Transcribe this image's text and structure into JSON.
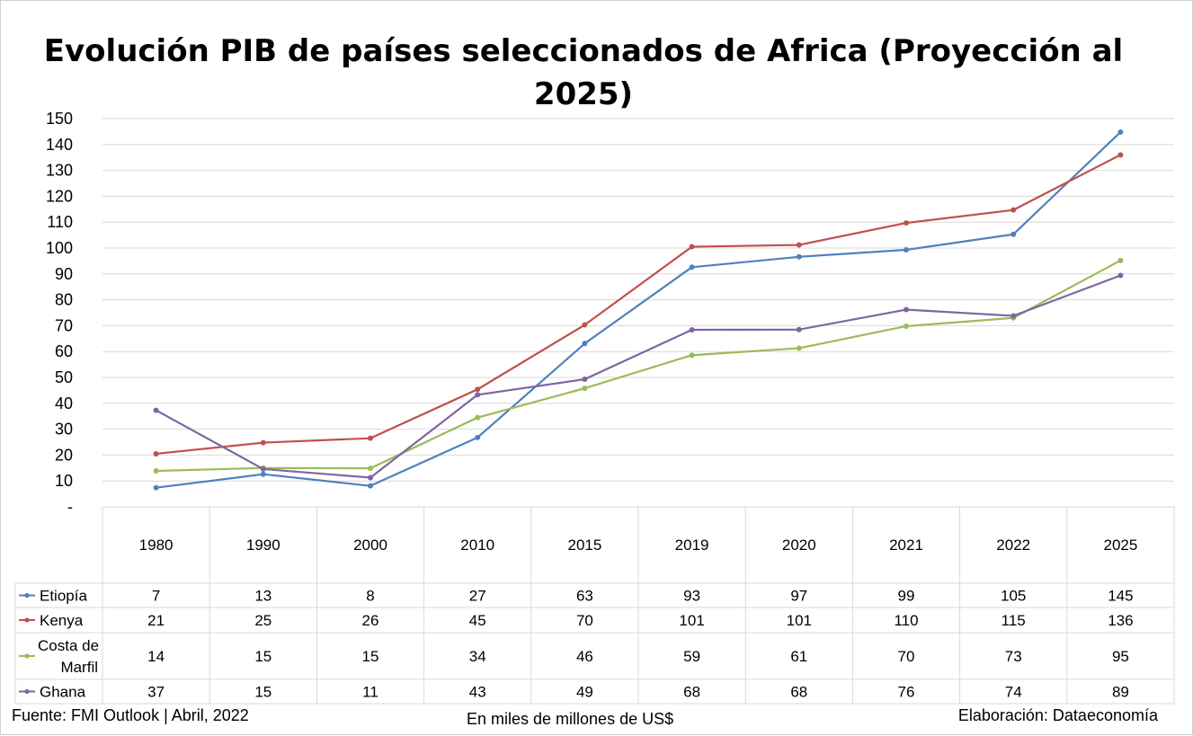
{
  "chart_data": {
    "type": "line",
    "title": "Evolución PIB de países seleccionados de Africa (Proyección al 2025)",
    "title_lines": [
      "Evolución PIB de países seleccionados de Africa (Proyección al",
      "2025)"
    ],
    "categories": [
      "1980",
      "1990",
      "2000",
      "2010",
      "2015",
      "2019",
      "2020",
      "2021",
      "2022",
      "2025"
    ],
    "ylim": [
      0,
      150
    ],
    "yticks": [
      {
        "value": 0,
        "label": "-"
      },
      {
        "value": 10,
        "label": "10"
      },
      {
        "value": 20,
        "label": "20"
      },
      {
        "value": 30,
        "label": "30"
      },
      {
        "value": 40,
        "label": "40"
      },
      {
        "value": 50,
        "label": "50"
      },
      {
        "value": 60,
        "label": "60"
      },
      {
        "value": 70,
        "label": "70"
      },
      {
        "value": 80,
        "label": "80"
      },
      {
        "value": 90,
        "label": "90"
      },
      {
        "value": 100,
        "label": "100"
      },
      {
        "value": 110,
        "label": "110"
      },
      {
        "value": 120,
        "label": "120"
      },
      {
        "value": 130,
        "label": "130"
      },
      {
        "value": 140,
        "label": "140"
      },
      {
        "value": 150,
        "label": "150"
      }
    ],
    "grid": true,
    "legend": "data-table",
    "series": [
      {
        "name": "Etiopía",
        "name_lines": [
          "Etiopía"
        ],
        "color": "#4F81BD",
        "values": [
          7.4,
          12.6,
          8.1,
          26.8,
          63.1,
          92.6,
          96.6,
          99.3,
          105.3,
          144.8
        ],
        "labels": [
          "7",
          "13",
          "8",
          "27",
          "63",
          "93",
          "97",
          "99",
          "105",
          "145"
        ]
      },
      {
        "name": "Kenya",
        "name_lines": [
          "Kenya"
        ],
        "color": "#C0504D",
        "values": [
          20.5,
          24.8,
          26.5,
          45.4,
          70.3,
          100.5,
          101.2,
          109.7,
          114.7,
          136.0
        ],
        "labels": [
          "21",
          "25",
          "26",
          "45",
          "70",
          "101",
          "101",
          "110",
          "115",
          "136"
        ]
      },
      {
        "name": "Costa de Marfil",
        "name_lines": [
          "Costa de",
          "Marfil"
        ],
        "color": "#9BBB59",
        "values": [
          13.9,
          15.0,
          14.9,
          34.5,
          45.8,
          58.6,
          61.3,
          69.8,
          73.0,
          95.2
        ],
        "labels": [
          "14",
          "15",
          "15",
          "34",
          "46",
          "59",
          "61",
          "70",
          "73",
          "95"
        ]
      },
      {
        "name": "Ghana",
        "name_lines": [
          "Ghana"
        ],
        "color": "#8064A2",
        "values": [
          37.3,
          14.6,
          11.3,
          43.3,
          49.3,
          68.4,
          68.5,
          76.2,
          73.8,
          89.4
        ],
        "labels": [
          "37",
          "15",
          "11",
          "43",
          "49",
          "68",
          "68",
          "76",
          "74",
          "89"
        ]
      }
    ]
  },
  "footer": {
    "source": "Fuente: FMI Outlook | Abril, 2022",
    "units": "En miles de millones de US$",
    "credit": "Elaboración: Dataeconomía"
  }
}
